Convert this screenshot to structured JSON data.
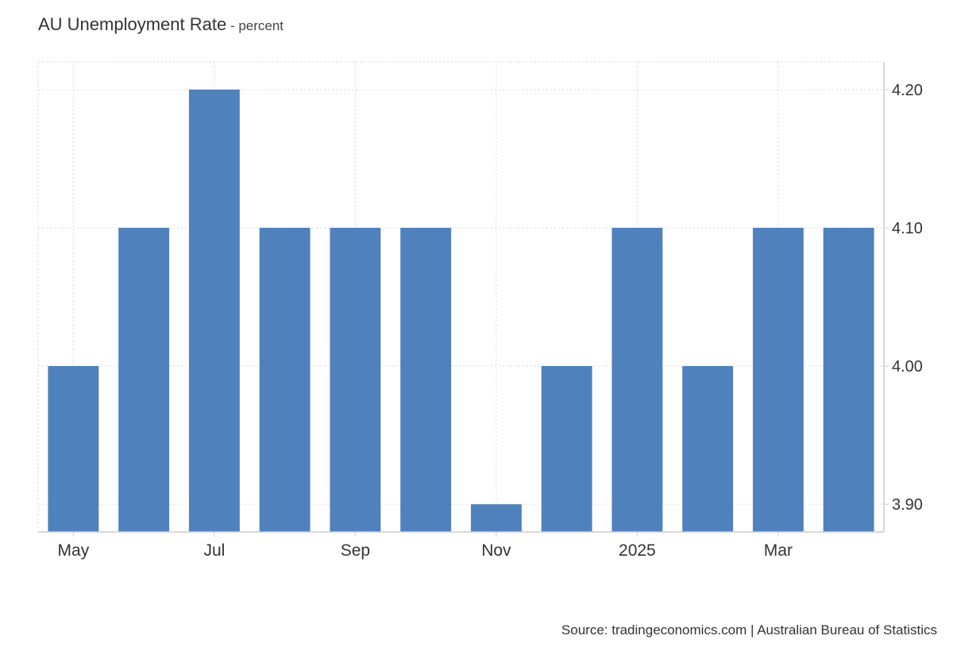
{
  "title": "AU Unemployment Rate",
  "title_separator": " - ",
  "unit": "percent",
  "source": "Source: tradingeconomics.com | Australian Bureau of Statistics",
  "colors": {
    "bar": "#4f81bd",
    "grid": "#d9d9d9",
    "axis": "#cccccc",
    "text": "#333333"
  },
  "chart_data": {
    "type": "bar",
    "series": [
      {
        "values": [
          4.0,
          4.1,
          4.2,
          4.1,
          4.1,
          4.1,
          3.9,
          4.0,
          4.1,
          4.0,
          4.1,
          4.1
        ]
      }
    ],
    "x_tick_labels": [
      "May",
      "",
      "Jul",
      "",
      "Sep",
      "",
      "Nov",
      "",
      "2025",
      "",
      "Mar",
      ""
    ],
    "y_ticks": [
      3.9,
      4.0,
      4.1,
      4.2
    ],
    "y_tick_labels": [
      "3.90",
      "4.00",
      "4.10",
      "4.20"
    ],
    "ylim": [
      3.88,
      4.22
    ],
    "y_axis_position": "right",
    "grid": true,
    "legend": "none"
  }
}
